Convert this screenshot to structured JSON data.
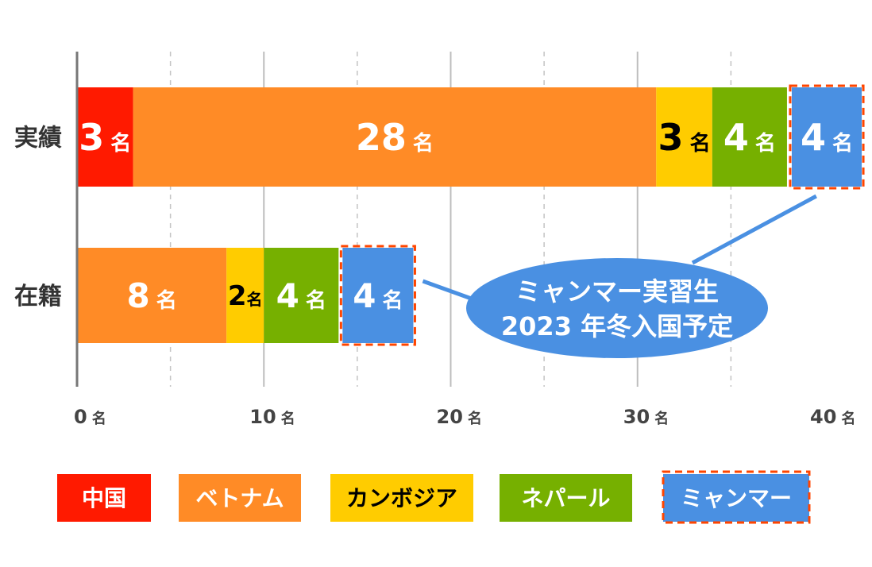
{
  "chart_data": {
    "type": "bar",
    "orientation": "horizontal",
    "stacked": true,
    "categories": [
      "実績",
      "在籍"
    ],
    "series": [
      {
        "name": "中国",
        "values": [
          3,
          0
        ],
        "color": "#ff1a00",
        "label_color": "#ffffff",
        "dashed_outline": false
      },
      {
        "name": "ベトナム",
        "values": [
          28,
          8
        ],
        "color": "#ff8b26",
        "label_color": "#ffffff",
        "dashed_outline": false
      },
      {
        "name": "カンボジア",
        "values": [
          3,
          2
        ],
        "color": "#ffcc00",
        "label_color": "#000000",
        "dashed_outline": false
      },
      {
        "name": "ネパール",
        "values": [
          4,
          4
        ],
        "color": "#76b000",
        "label_color": "#ffffff",
        "dashed_outline": false
      },
      {
        "name": "ミャンマー",
        "values": [
          4,
          4
        ],
        "color": "#4a90e2",
        "label_color": "#ffffff",
        "dashed_outline": true
      }
    ],
    "value_unit": "名",
    "xlim": [
      0,
      40
    ],
    "x_ticks": [
      0,
      10,
      20,
      30,
      40
    ],
    "x_tick_unit": "名",
    "grid": {
      "major": [
        10,
        20,
        30
      ],
      "minor_dashed": [
        5,
        15,
        25,
        35
      ]
    },
    "legend": {
      "placement": "bottom"
    },
    "outline_color": "#ff4500",
    "annotation": {
      "lines": [
        "ミャンマー実習生",
        "2023 年冬入国予定"
      ],
      "color": "#4a90e2",
      "text_color": "#ffffff",
      "points_to": [
        "実績",
        "在籍"
      ],
      "series": "ミャンマー"
    }
  }
}
